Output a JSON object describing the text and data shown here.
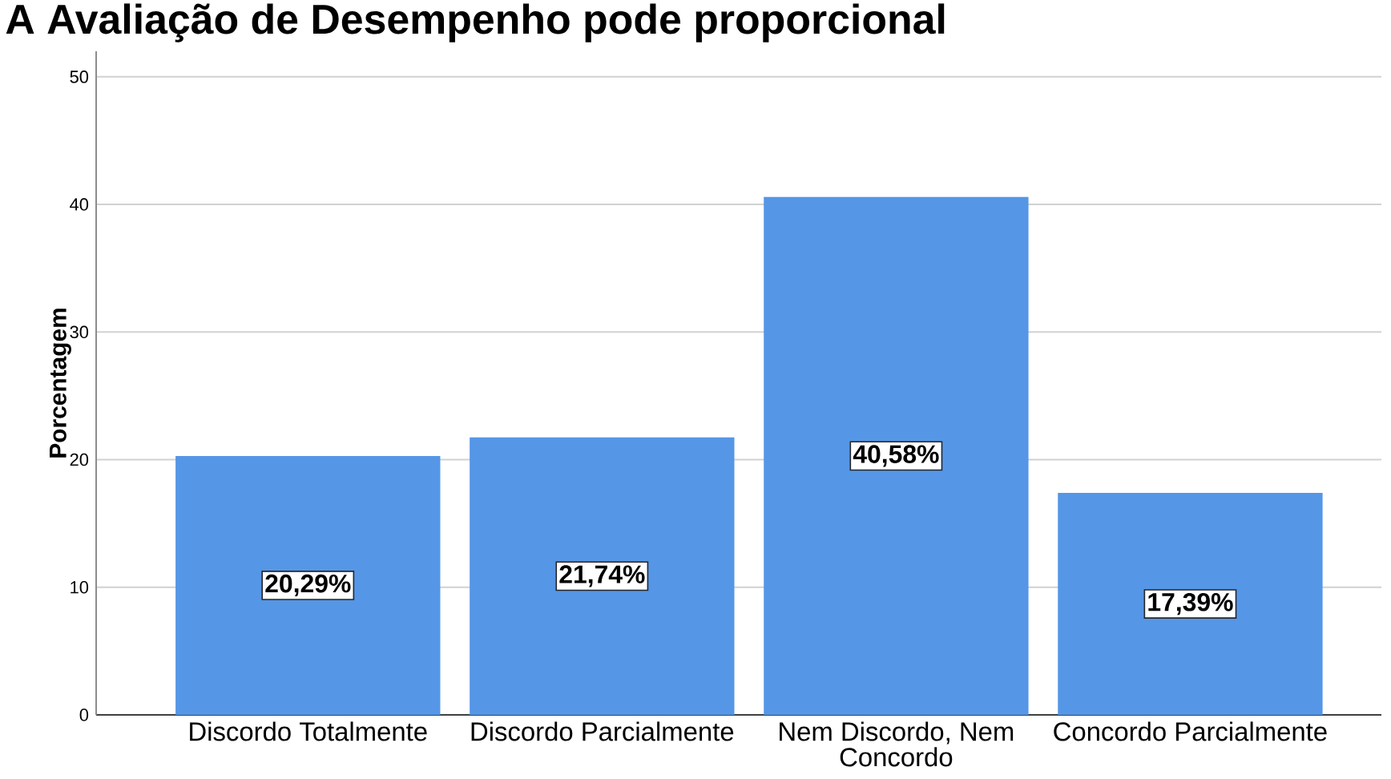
{
  "chart_data": {
    "type": "bar",
    "title": "A Avaliação de Desempenho pode proporcional",
    "ylabel": "Porcentagem",
    "categories": [
      "Discordo Totalmente",
      "Discordo Parcialmente",
      "Nem Discordo, Nem Concordo",
      "Concordo Parcialmente"
    ],
    "values": [
      20.29,
      21.74,
      40.58,
      17.39
    ],
    "color": "#5596e6",
    "value_labels": [
      "20,29%",
      "21,74%",
      "40,58%",
      "17,39%"
    ],
    "ylim": [
      0,
      52
    ],
    "yticks": [
      0,
      10,
      20,
      30,
      40,
      50
    ],
    "grid": "y"
  }
}
